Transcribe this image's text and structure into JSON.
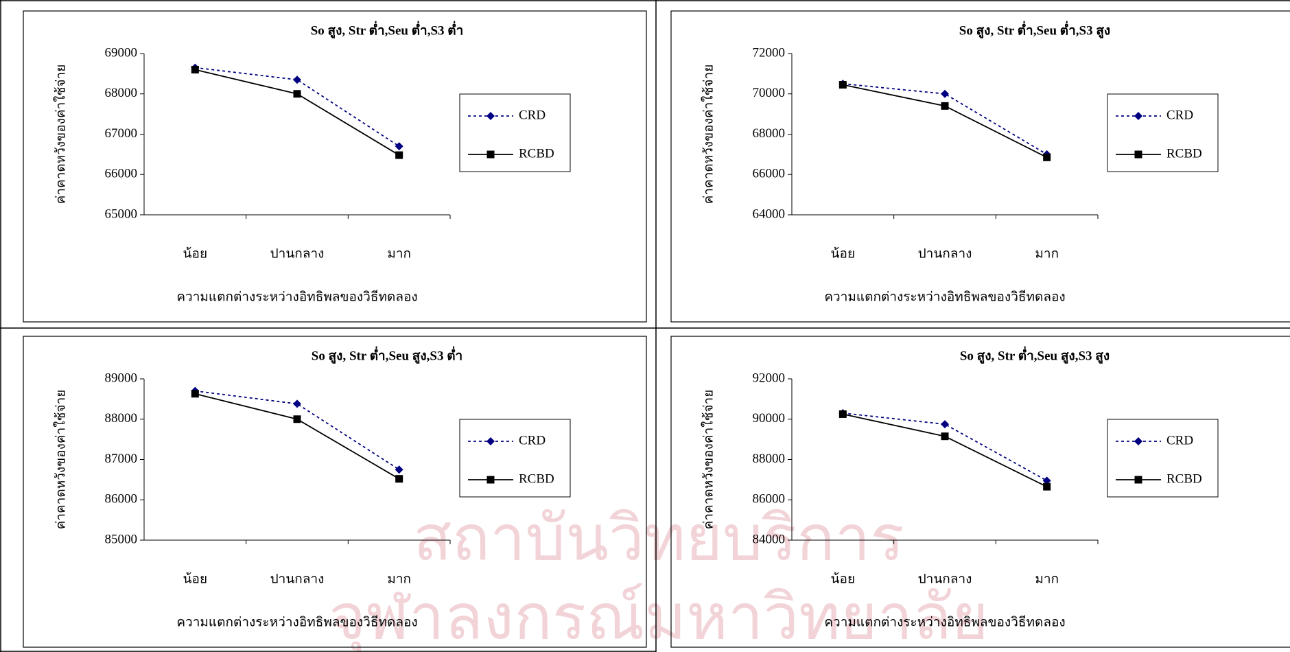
{
  "watermark": [
    "สถาบันวิทยบริการ",
    "จุฬาลงกรณ์มหาวิทยาลัย"
  ],
  "chart_data": [
    {
      "type": "line",
      "title": "So สูง, Str ต่ำ,Seu ต่ำ,S3 ต่ำ",
      "y_label": "ค่าคาดหวังของค่าใช้จ่าย",
      "x_label": "ความแตกต่างระหว่างอิทธิพลของวิธีทดลอง",
      "categories": [
        "น้อย",
        "ปานกลาง",
        "มาก"
      ],
      "series": [
        {
          "name": "CRD",
          "color": "#000080",
          "line_style": "dotted",
          "marker": "diamond",
          "values": [
            68650,
            68350,
            66700
          ]
        },
        {
          "name": "RCBD",
          "color": "#000000",
          "line_style": "solid",
          "marker": "square",
          "values": [
            68600,
            68000,
            66480
          ]
        }
      ],
      "ylim": [
        65000,
        69000
      ],
      "yticks": [
        65000,
        66000,
        67000,
        68000,
        69000
      ],
      "legend": "right"
    },
    {
      "type": "line",
      "title": "So สูง, Str ต่ำ,Seu ต่ำ,S3 สูง",
      "y_label": "ค่าคาดหวังของค่าใช้จ่าย",
      "x_label": "ความแตกต่างระหว่างอิทธิพลของวิธีทดลอง",
      "categories": [
        "น้อย",
        "ปานกลาง",
        "มาก"
      ],
      "series": [
        {
          "name": "CRD",
          "color": "#000080",
          "line_style": "dotted",
          "marker": "diamond",
          "values": [
            70500,
            70000,
            67000
          ]
        },
        {
          "name": "RCBD",
          "color": "#000000",
          "line_style": "solid",
          "marker": "square",
          "values": [
            70450,
            69400,
            66850
          ]
        }
      ],
      "ylim": [
        64000,
        72000
      ],
      "yticks": [
        64000,
        66000,
        68000,
        70000,
        72000
      ],
      "legend": "right"
    },
    {
      "type": "line",
      "title": "So สูง, Str ต่ำ,Seu สูง,S3 ต่ำ",
      "y_label": "ค่าคาดหวังของค่าใช้จ่าย",
      "x_label": "ความแตกต่างระหว่างอิทธิพลของวิธีทดลอง",
      "categories": [
        "น้อย",
        "ปานกลาง",
        "มาก"
      ],
      "series": [
        {
          "name": "CRD",
          "color": "#000080",
          "line_style": "dotted",
          "marker": "diamond",
          "values": [
            88700,
            88380,
            86750
          ]
        },
        {
          "name": "RCBD",
          "color": "#000000",
          "line_style": "solid",
          "marker": "square",
          "values": [
            88630,
            88000,
            86520
          ]
        }
      ],
      "ylim": [
        85000,
        89000
      ],
      "yticks": [
        85000,
        86000,
        87000,
        88000,
        89000
      ],
      "legend": "right"
    },
    {
      "type": "line",
      "title": "So สูง, Str ต่ำ,Seu สูง,S3 สูง",
      "y_label": "ค่าคาดหวังของค่าใช้จ่าย",
      "x_label": "ความแตกต่างระหว่างอิทธิพลของวิธีทดลอง",
      "categories": [
        "น้อย",
        "ปานกลาง",
        "มาก"
      ],
      "series": [
        {
          "name": "CRD",
          "color": "#000080",
          "line_style": "dotted",
          "marker": "diamond",
          "values": [
            90300,
            89750,
            86950
          ]
        },
        {
          "name": "RCBD",
          "color": "#000000",
          "line_style": "solid",
          "marker": "square",
          "values": [
            90250,
            89150,
            86650
          ]
        }
      ],
      "ylim": [
        84000,
        92000
      ],
      "yticks": [
        84000,
        86000,
        88000,
        90000,
        92000
      ],
      "legend": "right"
    }
  ]
}
